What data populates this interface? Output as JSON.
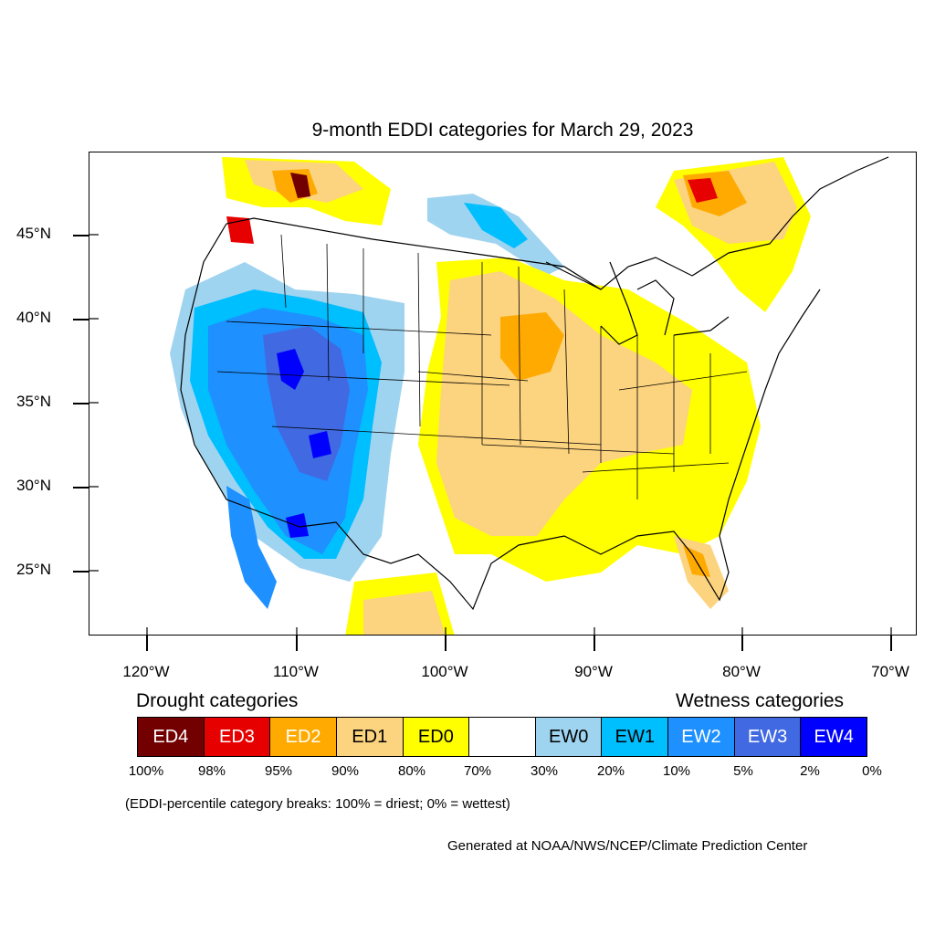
{
  "title": "9-month EDDI categories for March 29, 2023",
  "axes": {
    "lat_labels": [
      "45°N",
      "40°N",
      "35°N",
      "30°N",
      "25°N"
    ],
    "lon_labels": [
      "120°W",
      "110°W",
      "100°W",
      "90°W",
      "80°W",
      "70°W"
    ]
  },
  "legend": {
    "drought_heading": "Drought categories",
    "wetness_heading": "Wetness categories",
    "categories": [
      {
        "label": "ED4",
        "color": "#730000",
        "text_color": "#ffffff"
      },
      {
        "label": "ED3",
        "color": "#e60000",
        "text_color": "#ffffff"
      },
      {
        "label": "ED2",
        "color": "#ffaa00",
        "text_color": "#ffffff"
      },
      {
        "label": "ED1",
        "color": "#fcd37f",
        "text_color": "#000000"
      },
      {
        "label": "ED0",
        "color": "#ffff00",
        "text_color": "#000000"
      },
      {
        "label": "",
        "color": "#ffffff",
        "text_color": "#000000"
      },
      {
        "label": "EW0",
        "color": "#9fd4f0",
        "text_color": "#000000"
      },
      {
        "label": "EW1",
        "color": "#00bfff",
        "text_color": "#000000"
      },
      {
        "label": "EW2",
        "color": "#1e90ff",
        "text_color": "#ffffff"
      },
      {
        "label": "EW3",
        "color": "#4169e1",
        "text_color": "#ffffff"
      },
      {
        "label": "EW4",
        "color": "#0000ff",
        "text_color": "#ffffff"
      }
    ],
    "breaks": [
      "100%",
      "98%",
      "95%",
      "90%",
      "80%",
      "70%",
      "30%",
      "20%",
      "10%",
      "5%",
      "2%",
      "0%"
    ]
  },
  "note": "(EDDI-percentile category breaks: 100% = driest; 0% = wettest)",
  "credit": "Generated at NOAA/NWS/NCEP/Climate Prediction Center"
}
